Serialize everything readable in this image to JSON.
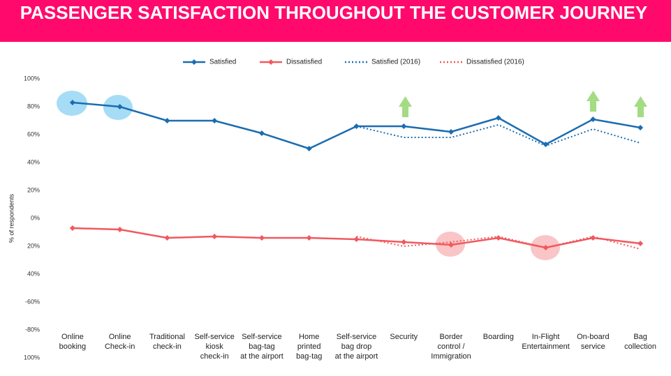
{
  "chart_data": {
    "type": "line",
    "title": "PASSENGER SATISFACTION THROUGHOUT THE CUSTOMER JOURNEY",
    "y_label": "% of respondents",
    "categories": [
      [
        "Online",
        "booking"
      ],
      [
        "Online",
        "Check-in"
      ],
      [
        "Traditional",
        "check-in"
      ],
      [
        "Self-service",
        "kiosk",
        "check-in"
      ],
      [
        "Self-service",
        "bag-tag",
        "at the airport"
      ],
      [
        "Home",
        "printed",
        "bag-tag"
      ],
      [
        "Self-service",
        "bag drop",
        "at the airport"
      ],
      [
        "Security"
      ],
      [
        "Border",
        "control /",
        "Immigration"
      ],
      [
        "Boarding"
      ],
      [
        "In-Flight",
        "Entertainment"
      ],
      [
        "On-board",
        "service"
      ],
      [
        "Bag",
        "collection"
      ]
    ],
    "series": [
      {
        "name": "Satisfied",
        "color": "#1b6db0",
        "style": "solid",
        "values": [
          83,
          80,
          70,
          70,
          61,
          50,
          66,
          66,
          62,
          72,
          53,
          71,
          65
        ]
      },
      {
        "name": "Dissatisfied",
        "color": "#f0595e",
        "style": "solid",
        "values": [
          -7,
          -8,
          -14,
          -13,
          -14,
          -14,
          -15,
          -17,
          -19,
          -14,
          -21,
          -14,
          -18
        ]
      },
      {
        "name": "Satisfied (2016)",
        "color": "#1b6db0",
        "style": "dotted",
        "values": [
          null,
          null,
          null,
          null,
          null,
          null,
          66,
          58,
          58,
          67,
          52,
          64,
          54
        ]
      },
      {
        "name": "Dissatisfied (2016)",
        "color": "#f0595e",
        "style": "dotted",
        "values": [
          null,
          null,
          null,
          null,
          null,
          null,
          -13,
          -20,
          -17,
          -13,
          -21,
          -13,
          -22
        ]
      }
    ],
    "ylim": [
      -100,
      100
    ],
    "yticks": [
      {
        "value": 100,
        "label": "100%"
      },
      {
        "value": 80,
        "label": "80%"
      },
      {
        "value": 60,
        "label": "60%"
      },
      {
        "value": 40,
        "label": "40%"
      },
      {
        "value": 20,
        "label": "20%"
      },
      {
        "value": 0,
        "label": "0%"
      },
      {
        "value": -20,
        "label": "20%"
      },
      {
        "value": -40,
        "label": "40%"
      },
      {
        "value": -60,
        "label": "-60%"
      },
      {
        "value": -80,
        "label": "-80%"
      },
      {
        "value": -100,
        "label": "100%"
      }
    ],
    "grid": false
  }
}
